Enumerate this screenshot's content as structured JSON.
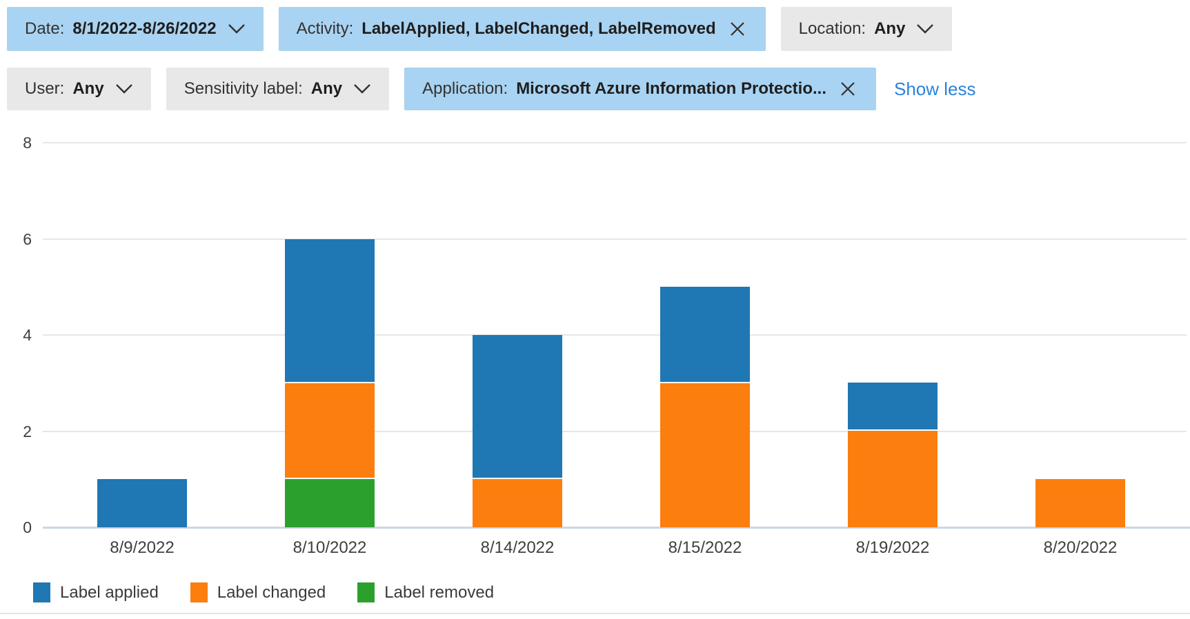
{
  "filters": {
    "row1": [
      {
        "id": "date",
        "label": "Date:",
        "value": "8/1/2022-8/26/2022",
        "kind": "dropdown",
        "selected": true
      },
      {
        "id": "activity",
        "label": "Activity:",
        "value": "LabelApplied, LabelChanged, LabelRemoved",
        "kind": "removable",
        "selected": true
      },
      {
        "id": "location",
        "label": "Location:",
        "value": "Any",
        "kind": "dropdown",
        "selected": false
      }
    ],
    "row2": [
      {
        "id": "user",
        "label": "User:",
        "value": "Any",
        "kind": "dropdown",
        "selected": false
      },
      {
        "id": "sensitivity-label",
        "label": "Sensitivity label:",
        "value": "Any",
        "kind": "dropdown",
        "selected": false
      },
      {
        "id": "application",
        "label": "Application:",
        "value": "Microsoft Azure Information Protectio...",
        "kind": "removable",
        "selected": true
      }
    ],
    "show_less_label": "Show less"
  },
  "chart_data": {
    "type": "bar",
    "stacked": true,
    "title": "",
    "xlabel": "",
    "ylabel": "",
    "categories": [
      "8/9/2022",
      "8/10/2022",
      "8/14/2022",
      "8/15/2022",
      "8/19/2022",
      "8/20/2022"
    ],
    "series": [
      {
        "name": "Label applied",
        "color": "#1f77b4",
        "values": [
          1,
          3,
          3,
          2,
          1,
          0
        ]
      },
      {
        "name": "Label changed",
        "color": "#fb7e0e",
        "values": [
          0,
          2,
          1,
          3,
          2,
          1
        ]
      },
      {
        "name": "Label removed",
        "color": "#2ca02c",
        "values": [
          0,
          1,
          0,
          0,
          0,
          0
        ]
      }
    ],
    "stack_order_bottom_to_top": [
      "Label removed",
      "Label changed",
      "Label applied"
    ],
    "totals": [
      1,
      6,
      4,
      5,
      3,
      1
    ],
    "ylim": [
      0,
      8
    ],
    "yticks": [
      0,
      2,
      4,
      6,
      8
    ],
    "grid": true,
    "legend_position": "bottom"
  },
  "colors": {
    "pill_selected_bg": "#a9d3f2",
    "pill_bg": "#e9e8e8",
    "link_blue": "#2b83d8",
    "gridline": "#e6e6e6",
    "axis_line": "#cbd6ea",
    "tick_text": "#3f3f3f",
    "legend_text": "#3b3a39",
    "bar_blue": "#1f77b4",
    "bar_orange": "#fb7e0e",
    "bar_green": "#2ca02c"
  }
}
